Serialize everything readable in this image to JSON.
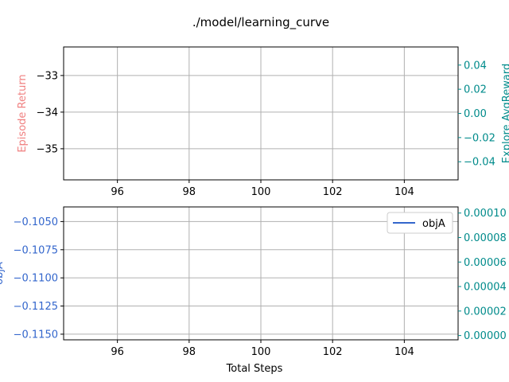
{
  "chart_data": {
    "title": "./model/learning_curve",
    "colors": {
      "return_axis": "#f08080",
      "explore_axis": "#008b8b",
      "obj_axis": "#3366cc",
      "grid": "#b0b0b0",
      "frame": "#000000"
    },
    "panels": [
      {
        "type": "line",
        "xlabel": "",
        "xlim": [
          94.5,
          105.5
        ],
        "xticks": [
          96,
          98,
          100,
          102,
          104
        ],
        "xticklabels": [
          "96",
          "98",
          "100",
          "102",
          "104"
        ],
        "left_axis": {
          "label": "Episode Return",
          "ylim": [
            -35.85,
            -32.22
          ],
          "ticks": [
            -33,
            -34,
            -35
          ],
          "ticklabels": [
            "−33",
            "−34",
            "−35"
          ]
        },
        "right_axis": {
          "label": "Explore AvgReward",
          "ylim": [
            -0.055,
            0.055
          ],
          "ticks": [
            0.04,
            0.02,
            0.0,
            -0.02,
            -0.04
          ],
          "ticklabels": [
            "0.04",
            "0.02",
            "0.00",
            "−0.02",
            "−0.04"
          ]
        },
        "series": [],
        "grid": true
      },
      {
        "type": "line",
        "xlabel": "Total Steps",
        "xlim": [
          94.5,
          105.5
        ],
        "xticks": [
          96,
          98,
          100,
          102,
          104
        ],
        "xticklabels": [
          "96",
          "98",
          "100",
          "102",
          "104"
        ],
        "left_axis": {
          "label": "objA",
          "ylim": [
            -0.1155,
            -0.1037
          ],
          "ticks": [
            -0.105,
            -0.1075,
            -0.11,
            -0.1125,
            -0.115
          ],
          "ticklabels": [
            "−0.1050",
            "−0.1075",
            "−0.1100",
            "−0.1125",
            "−0.1150"
          ]
        },
        "right_axis": {
          "label": "",
          "ylim": [
            -3.5e-06,
            0.000105
          ],
          "ticks": [
            0.0001,
            8e-05,
            6e-05,
            4e-05,
            2e-05,
            0.0
          ],
          "ticklabels": [
            "0.00010",
            "0.00008",
            "0.00006",
            "0.00004",
            "0.00002",
            "0.00000"
          ]
        },
        "series": [
          {
            "name": "objA",
            "x": [],
            "y": []
          }
        ],
        "legend": {
          "placement": "top-right",
          "entries": [
            "objA"
          ]
        },
        "grid": true
      }
    ]
  }
}
